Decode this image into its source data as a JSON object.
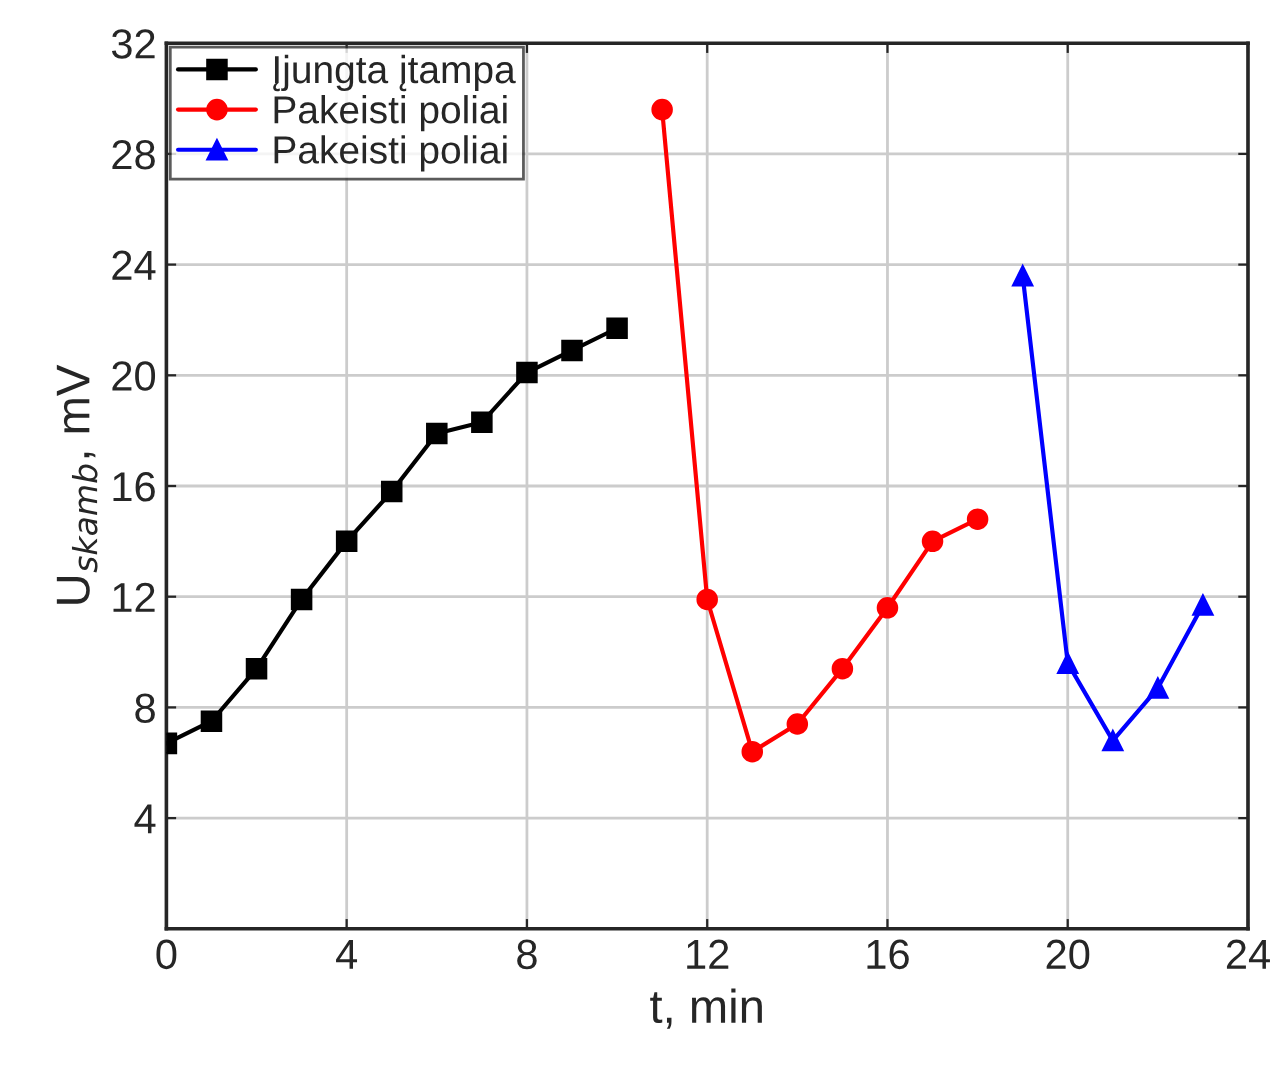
{
  "chart_data": {
    "type": "line",
    "xlabel": "t, min",
    "ylabel": "U$_{skamb}$, mV",
    "xlim": [
      0,
      24
    ],
    "xticks": [
      0,
      4,
      8,
      12,
      16,
      20,
      24
    ],
    "ylim": [
      0,
      32
    ],
    "yticks": [
      {
        "value": 0,
        "label": null
      },
      4,
      8,
      12,
      16,
      20,
      24,
      28,
      32
    ],
    "grid": true,
    "legend": "top left",
    "line_style": "solid",
    "series": [
      {
        "name": "Įjungta įtampa",
        "color": "#000000",
        "marker": "square",
        "x": [
          0,
          1,
          2,
          3,
          4,
          5,
          6,
          7,
          8,
          9,
          10
        ],
        "values": [
          6.7,
          7.5,
          9.4,
          11.9,
          14.0,
          15.8,
          17.9,
          18.3,
          20.1,
          20.9,
          21.7
        ]
      },
      {
        "name": "Pakeisti poliai",
        "color": "#ff0000",
        "marker": "circle",
        "x": [
          11,
          12,
          13,
          14,
          15,
          16,
          17,
          18
        ],
        "values": [
          29.6,
          11.9,
          6.4,
          7.4,
          9.4,
          11.6,
          14.0,
          14.8
        ]
      },
      {
        "name": "Pakeisti poliai",
        "color": "#0000ff",
        "marker": "triangle",
        "x": [
          19,
          20,
          21,
          22,
          23
        ],
        "values": [
          23.6,
          9.6,
          6.8,
          8.7,
          11.7
        ]
      }
    ]
  }
}
